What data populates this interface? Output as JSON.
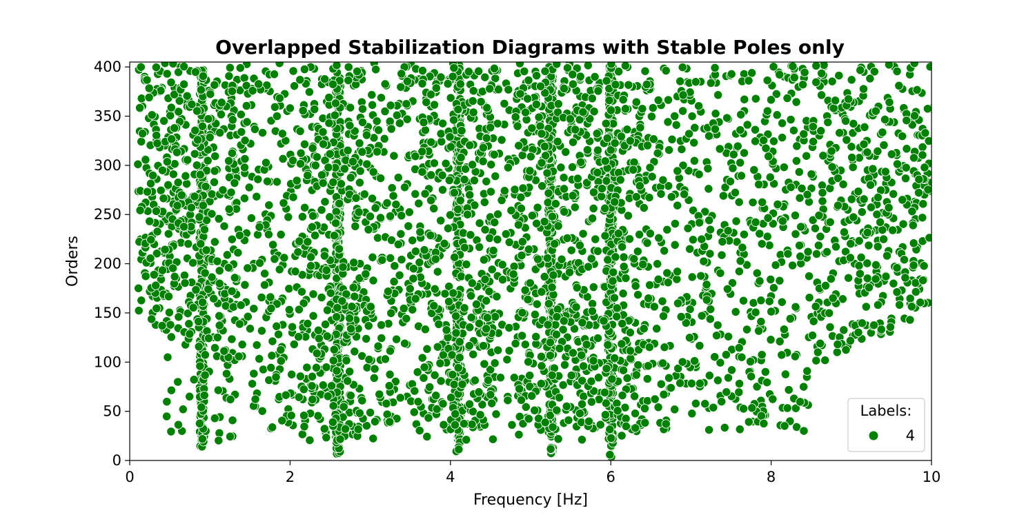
{
  "chart_data": {
    "type": "scatter",
    "title": "Overlapped Stabilization Diagrams with Stable Poles only",
    "xlabel": "Frequency [Hz]",
    "ylabel": "Orders",
    "xlim": [
      0,
      10
    ],
    "ylim": [
      0,
      405
    ],
    "x_ticks": [
      0,
      2,
      4,
      6,
      8,
      10
    ],
    "y_ticks": [
      0,
      50,
      100,
      150,
      200,
      250,
      300,
      350,
      400
    ],
    "x_tick_labels": [
      "0",
      "2",
      "4",
      "6",
      "8",
      "10"
    ],
    "y_tick_labels": [
      "0",
      "50",
      "100",
      "150",
      "200",
      "250",
      "300",
      "350",
      "400"
    ],
    "grid": false,
    "legend": {
      "title": "Labels:",
      "placement": "lower-right",
      "entries": [
        {
          "label": "4",
          "color": "#008000"
        }
      ]
    },
    "series": [
      {
        "label": "4",
        "color": "#008000",
        "edgecolor": "#ffffff",
        "modal_columns": [
          {
            "freq": 0.9,
            "order_min": 12,
            "order_max": 398
          },
          {
            "freq": 2.6,
            "order_min": 6,
            "order_max": 396
          },
          {
            "freq": 4.1,
            "order_min": 8,
            "order_max": 402
          },
          {
            "freq": 5.25,
            "order_min": 6,
            "order_max": 402
          },
          {
            "freq": 6.0,
            "order_min": 3,
            "order_max": 402
          }
        ],
        "x_range": [
          0.1,
          10.0
        ],
        "y_range": [
          3,
          405
        ],
        "approx_point_count": 9000
      }
    ]
  }
}
